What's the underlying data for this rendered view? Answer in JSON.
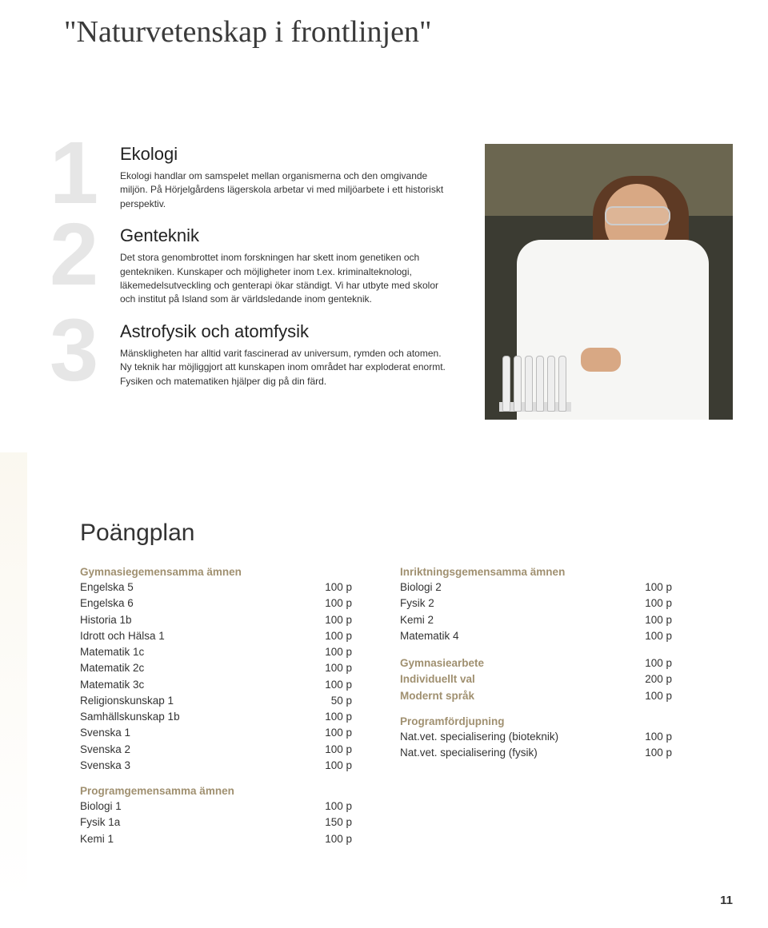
{
  "quote": "\"Naturvetenskap i frontlinjen\"",
  "sections": [
    {
      "num": "1",
      "title": "Ekologi",
      "body": "Ekologi handlar om samspelet mellan organismerna och den omgivande miljön. På Hörjelgårdens lägerskola arbetar vi med miljöarbete i ett historiskt perspektiv."
    },
    {
      "num": "2",
      "title": "Genteknik",
      "body": "Det stora genombrottet inom forskningen har skett inom genetiken och gentekniken. Kunskaper och möjligheter inom t.ex. kriminalteknologi, läkemedelsutveckling och genterapi ökar ständigt. Vi har utbyte med skolor och institut på Island som är världsledande inom genteknik."
    },
    {
      "num": "3",
      "title": "Astrofysik och atomfysik",
      "body": "Mänskligheten har alltid varit fascinerad av universum, rymden och atomen. Ny teknik har möjliggjort att kunskapen inom området har exploderat enormt. Fysiken och matematiken hjälper dig på din färd."
    }
  ],
  "plan": {
    "title": "Poängplan",
    "left": [
      {
        "type": "head",
        "text": "Gymnasiegemensamma ämnen"
      },
      {
        "type": "row",
        "label": "Engelska 5",
        "pts": "100 p"
      },
      {
        "type": "row",
        "label": "Engelska 6",
        "pts": "100 p"
      },
      {
        "type": "row",
        "label": "Historia 1b",
        "pts": "100 p"
      },
      {
        "type": "row",
        "label": "Idrott och Hälsa 1",
        "pts": "100 p"
      },
      {
        "type": "row",
        "label": "Matematik 1c",
        "pts": "100 p"
      },
      {
        "type": "row",
        "label": "Matematik 2c",
        "pts": "100 p"
      },
      {
        "type": "row",
        "label": "Matematik 3c",
        "pts": "100 p"
      },
      {
        "type": "row",
        "label": "Religionskunskap 1",
        "pts": "50 p"
      },
      {
        "type": "row",
        "label": "Samhällskunskap 1b",
        "pts": "100 p"
      },
      {
        "type": "row",
        "label": "Svenska 1",
        "pts": "100 p"
      },
      {
        "type": "row",
        "label": "Svenska 2",
        "pts": "100 p"
      },
      {
        "type": "row",
        "label": "Svenska 3",
        "pts": "100 p"
      },
      {
        "type": "head",
        "text": "Programgemensamma ämnen"
      },
      {
        "type": "row",
        "label": "Biologi 1",
        "pts": "100 p"
      },
      {
        "type": "row",
        "label": "Fysik 1a",
        "pts": "150 p"
      },
      {
        "type": "row",
        "label": "Kemi 1",
        "pts": "100 p"
      }
    ],
    "right": [
      {
        "type": "head",
        "text": "Inriktningsgemensamma ämnen"
      },
      {
        "type": "row",
        "label": "Biologi 2",
        "pts": "100 p"
      },
      {
        "type": "row",
        "label": "Fysik 2",
        "pts": "100 p"
      },
      {
        "type": "row",
        "label": "Kemi 2",
        "pts": "100 p"
      },
      {
        "type": "row",
        "label": "Matematik 4",
        "pts": "100 p"
      },
      {
        "type": "spacer"
      },
      {
        "type": "boldrow",
        "label": "Gymnasiearbete",
        "pts": "100 p"
      },
      {
        "type": "boldrow",
        "label": "Individuellt val",
        "pts": "200 p"
      },
      {
        "type": "boldrow",
        "label": "Modernt språk",
        "pts": "100 p"
      },
      {
        "type": "head",
        "text": "Programfördjupning"
      },
      {
        "type": "row",
        "label": "Nat.vet. specialisering (bioteknik)",
        "pts": "100 p"
      },
      {
        "type": "row",
        "label": "Nat.vet. specialisering (fysik)",
        "pts": "100 p"
      }
    ]
  },
  "page_number": "11",
  "colors": {
    "accent": "#a09070",
    "num_gray": "#e6e6e6"
  }
}
